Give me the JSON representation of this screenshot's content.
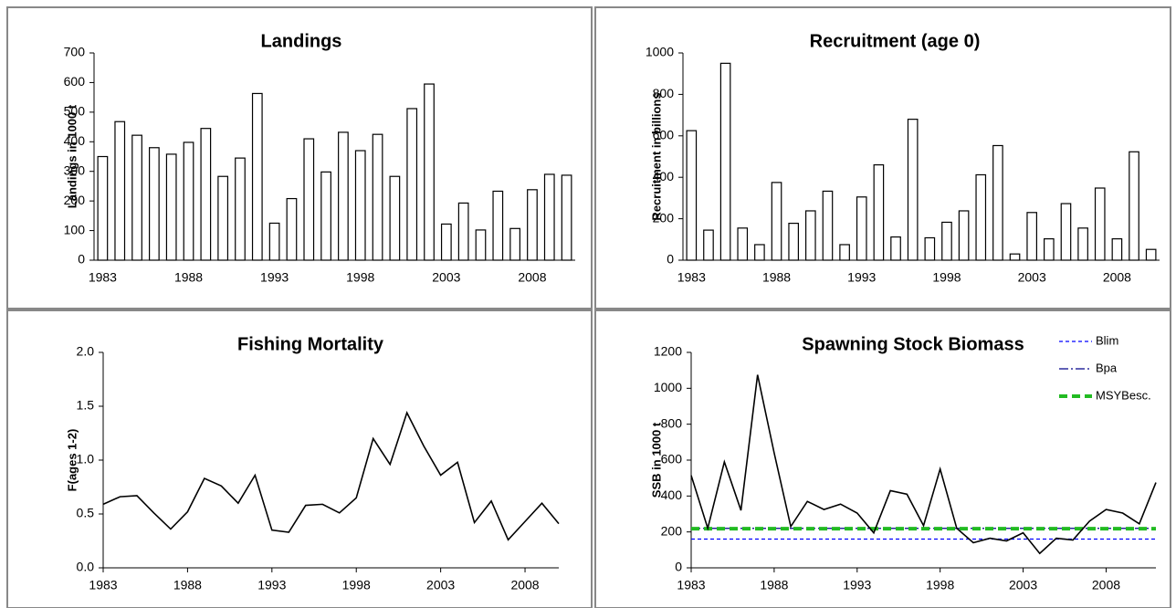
{
  "chart_data": [
    {
      "type": "bar",
      "title": "Landings",
      "y_label": "Landings in 1000 t",
      "categories": [
        1983,
        null,
        null,
        null,
        null,
        1988,
        null,
        null,
        null,
        null,
        1993,
        null,
        null,
        null,
        null,
        1998,
        null,
        null,
        null,
        null,
        2003,
        null,
        null,
        null,
        null,
        2008,
        null,
        null
      ],
      "values": [
        350,
        468,
        422,
        380,
        358,
        398,
        445,
        283,
        345,
        563,
        125,
        208,
        410,
        298,
        432,
        370,
        425,
        283,
        512,
        595,
        122,
        193,
        102,
        233,
        107,
        238,
        290,
        287
      ],
      "color": "#ffffff",
      "ylim": [
        0,
        700
      ],
      "yticks": [
        0,
        100,
        200,
        300,
        400,
        500,
        600,
        700
      ]
    },
    {
      "type": "bar",
      "title": "Recruitment (age 0)",
      "y_label": "Recruitment in billions",
      "categories": [
        1983,
        null,
        null,
        null,
        null,
        1988,
        null,
        null,
        null,
        null,
        1993,
        null,
        null,
        null,
        null,
        1998,
        null,
        null,
        null,
        null,
        2003,
        null,
        null,
        null,
        null,
        2008,
        null,
        null
      ],
      "values": [
        625,
        145,
        950,
        155,
        75,
        375,
        178,
        238,
        333,
        75,
        305,
        460,
        112,
        680,
        108,
        183,
        238,
        412,
        553,
        30,
        230,
        103,
        273,
        155,
        348,
        103,
        523,
        52
      ],
      "color": "#ffffff",
      "ylim": [
        0,
        1000
      ],
      "yticks": [
        0,
        200,
        400,
        600,
        800,
        1000
      ]
    },
    {
      "type": "line",
      "title": "Fishing Mortality",
      "y_label": "F(ages 1-2)",
      "x": [
        1983,
        1984,
        1985,
        1986,
        1987,
        1988,
        1989,
        1990,
        1991,
        1992,
        1993,
        1994,
        1995,
        1996,
        1997,
        1998,
        1999,
        2000,
        2001,
        2002,
        2003,
        2004,
        2005,
        2006,
        2007,
        2008,
        2009,
        2010
      ],
      "values": [
        0.59,
        0.66,
        0.67,
        0.51,
        0.36,
        0.52,
        0.83,
        0.76,
        0.6,
        0.86,
        0.35,
        0.33,
        0.58,
        0.59,
        0.51,
        0.65,
        1.2,
        0.96,
        1.44,
        1.13,
        0.86,
        0.98,
        0.42,
        0.62,
        0.26,
        0.43,
        0.6,
        0.41
      ],
      "color": "#000000",
      "xlim": [
        1983,
        2010
      ],
      "xticks": [
        1983,
        1988,
        1993,
        1998,
        2003,
        2008
      ],
      "ylim": [
        0,
        2
      ],
      "yticks": [
        {
          "value": 0,
          "label": "0.0"
        },
        {
          "value": 0.5,
          "label": "0.5"
        },
        {
          "value": 1,
          "label": "1.0"
        },
        {
          "value": 1.5,
          "label": "1.5"
        },
        {
          "value": 2,
          "label": "2.0"
        }
      ]
    },
    {
      "type": "line",
      "title": "Spawning Stock Biomass",
      "y_label": "SSB in 1000 t",
      "x": [
        1983,
        1984,
        1985,
        1986,
        1987,
        1988,
        1989,
        1990,
        1991,
        1992,
        1993,
        1994,
        1995,
        1996,
        1997,
        1998,
        1999,
        2000,
        2001,
        2002,
        2003,
        2004,
        2005,
        2006,
        2007,
        2008,
        2009,
        2010,
        2011
      ],
      "values": [
        515,
        220,
        590,
        320,
        1075,
        640,
        230,
        370,
        325,
        355,
        305,
        195,
        430,
        410,
        235,
        550,
        220,
        140,
        165,
        150,
        195,
        80,
        165,
        155,
        260,
        325,
        305,
        245,
        475
      ],
      "color": "#000000",
      "xlim": [
        1983,
        2011
      ],
      "xticks": [
        1983,
        1988,
        1993,
        1998,
        2003,
        2008
      ],
      "ylim": [
        0,
        1200
      ],
      "yticks": [
        0,
        200,
        400,
        600,
        800,
        1000,
        1200
      ],
      "hlines": [
        {
          "name": "Blim",
          "value": 160,
          "color": "#0000ff",
          "dash": "4 3",
          "width": 1.3
        },
        {
          "name": "Bpa",
          "value": 220,
          "color": "#00008b",
          "dash": "10 3 2 3",
          "width": 1.3
        },
        {
          "name": "MSYBesc.",
          "value": 218,
          "color": "#22bb22",
          "dash": "9 5",
          "width": 4
        }
      ]
    }
  ]
}
